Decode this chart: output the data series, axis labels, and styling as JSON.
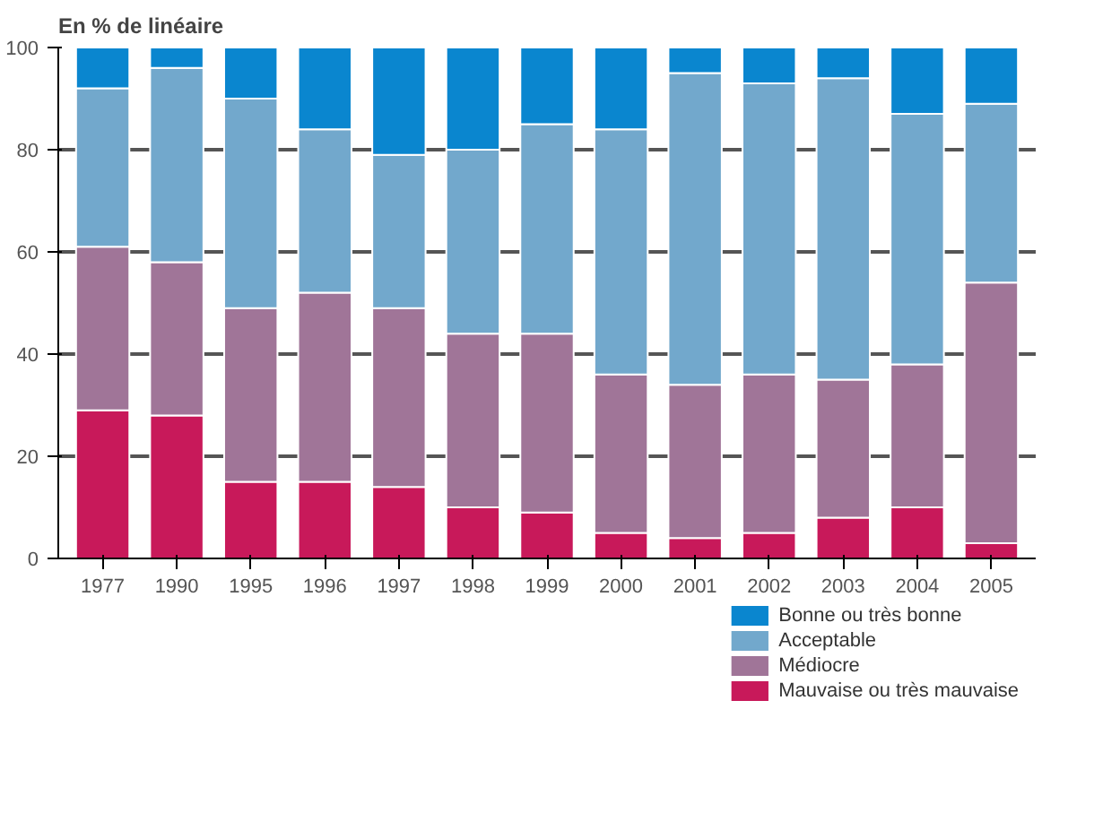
{
  "chart_data": {
    "type": "bar",
    "stacked": true,
    "ylabel": "En % de linéaire",
    "categories": [
      "1977",
      "1990",
      "1995",
      "1996",
      "1997",
      "1998",
      "1999",
      "2000",
      "2001",
      "2002",
      "2003",
      "2004",
      "2005"
    ],
    "series": [
      {
        "name": "Mauvaise ou très mauvaise",
        "color": "#c8195a",
        "values": [
          29,
          28,
          15,
          15,
          14,
          10,
          9,
          5,
          4,
          5,
          8,
          10,
          3
        ]
      },
      {
        "name": "Médiocre",
        "color": "#a07598",
        "values": [
          32,
          30,
          34,
          37,
          35,
          34,
          35,
          31,
          30,
          31,
          27,
          28,
          51
        ]
      },
      {
        "name": "Acceptable",
        "color": "#72a8cc",
        "values": [
          31,
          38,
          41,
          32,
          30,
          36,
          41,
          48,
          61,
          57,
          59,
          49,
          35
        ]
      },
      {
        "name": "Bonne ou très bonne",
        "color": "#0a86cf",
        "values": [
          8,
          4,
          10,
          16,
          21,
          20,
          15,
          16,
          5,
          7,
          6,
          13,
          11
        ]
      }
    ],
    "ylim": [
      0,
      100
    ],
    "yticks": [
      0,
      20,
      40,
      60,
      80,
      100
    ],
    "grid": "y",
    "legend": "bottom right"
  }
}
